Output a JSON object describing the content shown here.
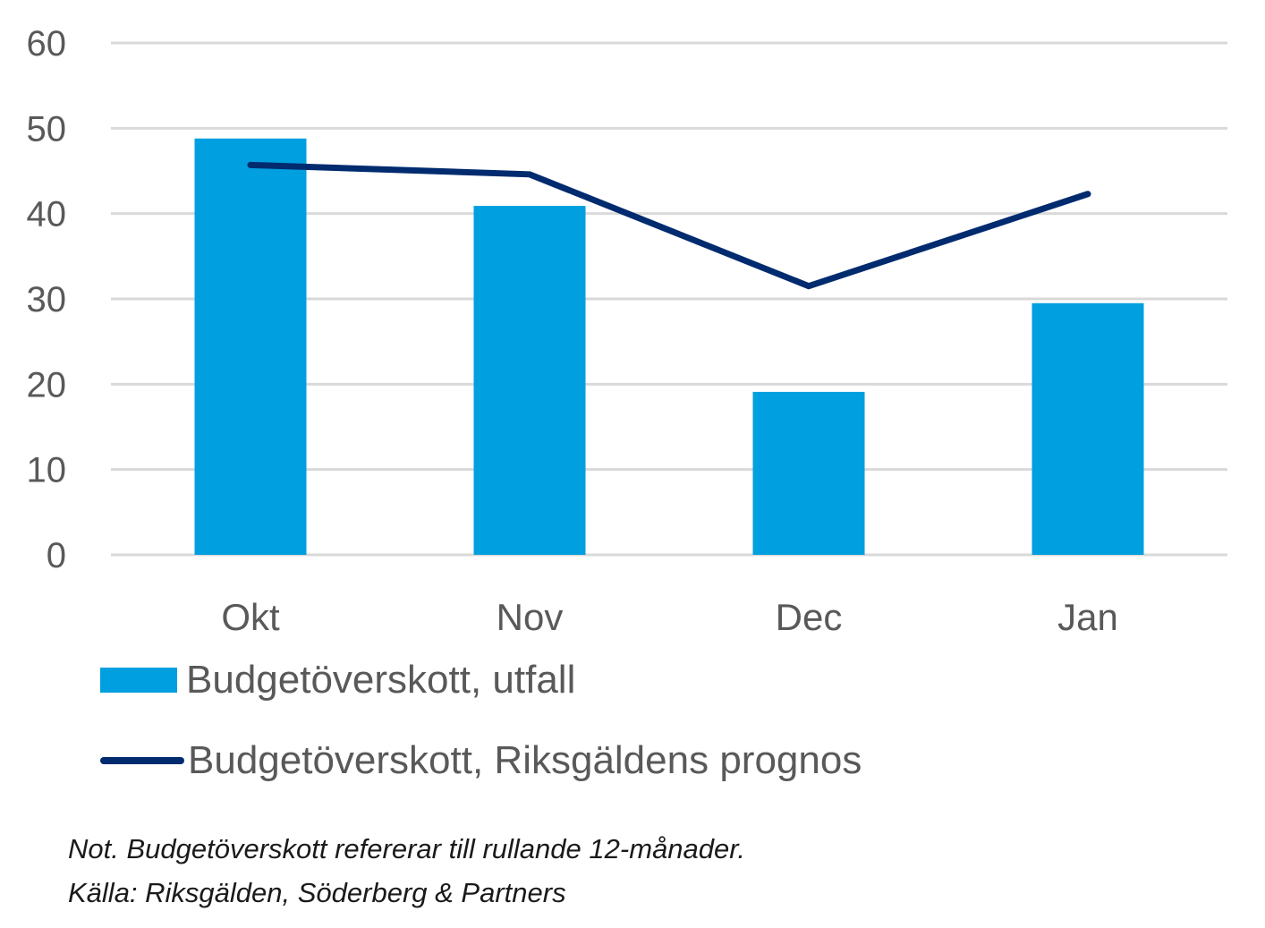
{
  "chart_data": {
    "type": "bar",
    "categories": [
      "Okt",
      "Nov",
      "Dec",
      "Jan"
    ],
    "ylim": [
      0,
      60
    ],
    "yticks": [
      0,
      10,
      20,
      30,
      40,
      50,
      60
    ],
    "grid": true,
    "legend_position": "bottom-left",
    "series": [
      {
        "name": "Budgetöverskott, utfall",
        "kind": "bar",
        "color": "#009fdf",
        "values": [
          48.8,
          40.9,
          19.1,
          29.5
        ]
      },
      {
        "name": "Budgetöverskott, Riksgäldens prognos",
        "kind": "line",
        "color": "#002b6f",
        "values": [
          45.7,
          44.6,
          31.5,
          42.3
        ]
      }
    ]
  },
  "notes": {
    "line1": "Not. Budgetöverskott refererar till rullande 12-månader.",
    "line2": "Källa: Riksgälden, Söderberg & Partners"
  }
}
